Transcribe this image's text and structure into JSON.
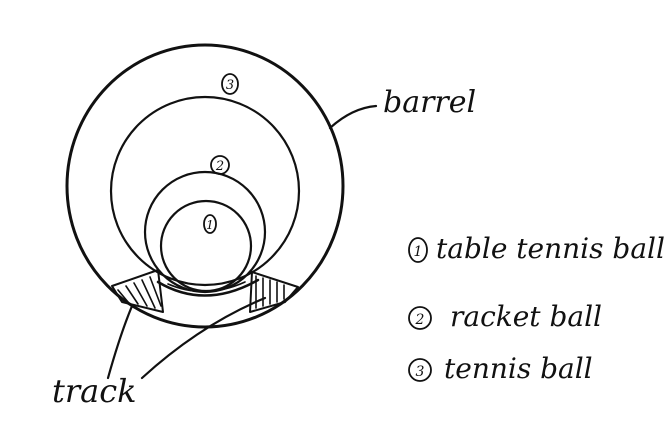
{
  "diagram": {
    "labels": {
      "barrel": "barrel",
      "track": "track"
    },
    "markers": {
      "m1": "1",
      "m2": "2",
      "m3": "3"
    },
    "legend": [
      {
        "number": "1",
        "text": "table tennis ball"
      },
      {
        "number": "2",
        "text": "racket ball"
      },
      {
        "number": "3",
        "text": "tennis ball"
      }
    ],
    "colors": {
      "ink": "#111111",
      "paper": "#ffffff"
    }
  }
}
